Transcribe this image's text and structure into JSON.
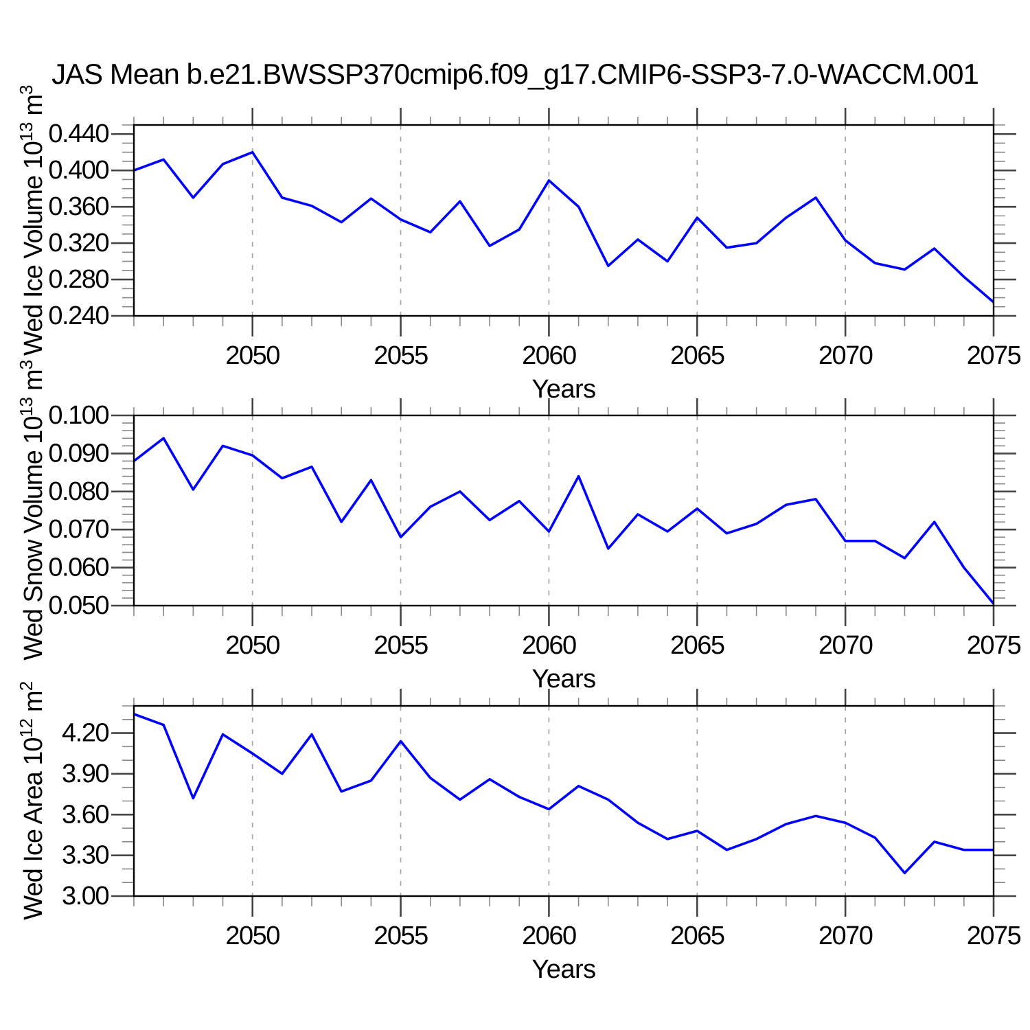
{
  "title": "JAS Mean b.e21.BWSSP370cmip6.f09_g17.CMIP6-SSP3-7.0-WACCM.001",
  "style": {
    "line_color": "#0000ff",
    "frame_color": "#000000",
    "grid_color": "#a6a6a6",
    "major_tick_color": "#444444",
    "minor_tick_color": "#888888",
    "background": "#ffffff"
  },
  "chart_data": [
    {
      "type": "line",
      "name": "wed-ice-volume",
      "ylabel": "Wed Ice Volume 10^13 m^3",
      "ylabel_parts": {
        "base": "Wed Ice Volume 10",
        "sup1": "13",
        "mid": " m",
        "sup2": "3"
      },
      "xlabel": "Years",
      "years": [
        2046,
        2047,
        2048,
        2049,
        2050,
        2051,
        2052,
        2053,
        2054,
        2055,
        2056,
        2057,
        2058,
        2059,
        2060,
        2061,
        2062,
        2063,
        2064,
        2065,
        2066,
        2067,
        2068,
        2069,
        2070,
        2071,
        2072,
        2073,
        2074,
        2075
      ],
      "values": [
        0.4,
        0.412,
        0.37,
        0.407,
        0.42,
        0.37,
        0.361,
        0.343,
        0.369,
        0.346,
        0.332,
        0.366,
        0.317,
        0.335,
        0.389,
        0.36,
        0.295,
        0.324,
        0.3,
        0.348,
        0.315,
        0.32,
        0.348,
        0.37,
        0.323,
        0.298,
        0.291,
        0.314,
        0.283,
        0.255
      ],
      "ylim": [
        0.24,
        0.45
      ],
      "yticks": [
        0.24,
        0.28,
        0.32,
        0.36,
        0.4,
        0.44
      ],
      "ytick_labels": [
        "0.240",
        "0.280",
        "0.320",
        "0.360",
        "0.400",
        "0.440"
      ],
      "yminor_step": 0.01,
      "xlim": [
        2046,
        2075
      ],
      "xticks": [
        2050,
        2055,
        2060,
        2065,
        2070,
        2075
      ],
      "xtick_labels": [
        "2050",
        "2055",
        "2060",
        "2065",
        "2070",
        "2075"
      ],
      "xminor_step": 1,
      "grid_years": [
        2050,
        2055,
        2060,
        2065,
        2070
      ],
      "grid": "vertical-dashed",
      "legend": "none",
      "line_color": "#0000ff"
    },
    {
      "type": "line",
      "name": "wed-snow-volume",
      "ylabel": "Wed Snow Volume 10^13 m^3",
      "ylabel_parts": {
        "base": "Wed Snow Volume 10",
        "sup1": "13",
        "mid": " m",
        "sup2": "3"
      },
      "xlabel": "Years",
      "years": [
        2046,
        2047,
        2048,
        2049,
        2050,
        2051,
        2052,
        2053,
        2054,
        2055,
        2056,
        2057,
        2058,
        2059,
        2060,
        2061,
        2062,
        2063,
        2064,
        2065,
        2066,
        2067,
        2068,
        2069,
        2070,
        2071,
        2072,
        2073,
        2074,
        2075
      ],
      "values": [
        0.088,
        0.094,
        0.0805,
        0.092,
        0.0895,
        0.0835,
        0.0865,
        0.072,
        0.083,
        0.068,
        0.076,
        0.08,
        0.0725,
        0.0775,
        0.0695,
        0.084,
        0.065,
        0.074,
        0.0695,
        0.0755,
        0.069,
        0.0715,
        0.0765,
        0.078,
        0.067,
        0.067,
        0.0625,
        0.072,
        0.06,
        0.0505
      ],
      "ylim": [
        0.05,
        0.1
      ],
      "yticks": [
        0.05,
        0.06,
        0.07,
        0.08,
        0.09,
        0.1
      ],
      "ytick_labels": [
        "0.050",
        "0.060",
        "0.070",
        "0.080",
        "0.090",
        "0.100"
      ],
      "yminor_step": 0.002,
      "xlim": [
        2046,
        2075
      ],
      "xticks": [
        2050,
        2055,
        2060,
        2065,
        2070,
        2075
      ],
      "xtick_labels": [
        "2050",
        "2055",
        "2060",
        "2065",
        "2070",
        "2075"
      ],
      "xminor_step": 1,
      "grid_years": [
        2050,
        2055,
        2060,
        2065,
        2070
      ],
      "grid": "vertical-dashed",
      "legend": "none",
      "line_color": "#0000ff"
    },
    {
      "type": "line",
      "name": "wed-ice-area",
      "ylabel": "Wed Ice Area 10^12 m^2",
      "ylabel_parts": {
        "base": "Wed Ice Area 10",
        "sup1": "12",
        "mid": " m",
        "sup2": "2"
      },
      "xlabel": "Years",
      "years": [
        2046,
        2047,
        2048,
        2049,
        2050,
        2051,
        2052,
        2053,
        2054,
        2055,
        2056,
        2057,
        2058,
        2059,
        2060,
        2061,
        2062,
        2063,
        2064,
        2065,
        2066,
        2067,
        2068,
        2069,
        2070,
        2071,
        2072,
        2073,
        2074,
        2075
      ],
      "values": [
        4.34,
        4.26,
        3.72,
        4.19,
        4.05,
        3.9,
        4.19,
        3.77,
        3.85,
        4.14,
        3.87,
        3.71,
        3.86,
        3.73,
        3.64,
        3.81,
        3.71,
        3.54,
        3.42,
        3.48,
        3.34,
        3.42,
        3.53,
        3.59,
        3.54,
        3.43,
        3.17,
        3.4,
        3.34,
        3.34
      ],
      "ylim": [
        3.0,
        4.4
      ],
      "yticks": [
        3.0,
        3.3,
        3.6,
        3.9,
        4.2
      ],
      "ytick_labels": [
        "3.00",
        "3.30",
        "3.60",
        "3.90",
        "4.20"
      ],
      "yminor_step": 0.1,
      "xlim": [
        2046,
        2075
      ],
      "xticks": [
        2050,
        2055,
        2060,
        2065,
        2070,
        2075
      ],
      "xtick_labels": [
        "2050",
        "2055",
        "2060",
        "2065",
        "2070",
        "2075"
      ],
      "xminor_step": 1,
      "grid_years": [
        2050,
        2055,
        2060,
        2065,
        2070
      ],
      "grid": "vertical-dashed",
      "legend": "none",
      "line_color": "#0000ff"
    }
  ]
}
